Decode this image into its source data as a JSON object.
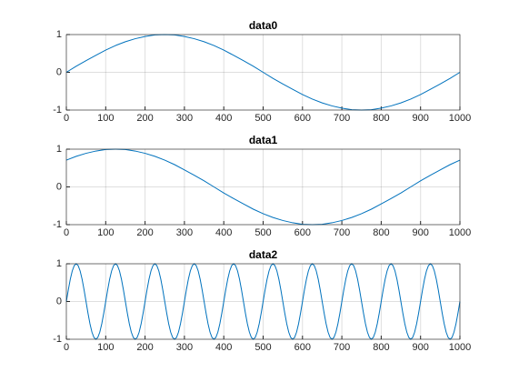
{
  "chart_data": [
    {
      "type": "line",
      "title": "data0",
      "x": [
        0,
        25,
        50,
        75,
        100,
        125,
        150,
        175,
        200,
        225,
        250,
        275,
        300,
        325,
        350,
        375,
        400,
        425,
        450,
        475,
        500,
        525,
        550,
        575,
        600,
        625,
        650,
        675,
        700,
        725,
        750,
        775,
        800,
        825,
        850,
        875,
        900,
        925,
        950,
        975,
        1000
      ],
      "values": [
        0,
        0.16,
        0.31,
        0.45,
        0.59,
        0.71,
        0.81,
        0.89,
        0.95,
        0.99,
        1,
        0.99,
        0.95,
        0.89,
        0.81,
        0.71,
        0.59,
        0.45,
        0.31,
        0.16,
        0,
        -0.16,
        -0.31,
        -0.45,
        -0.59,
        -0.71,
        -0.81,
        -0.89,
        -0.95,
        -0.99,
        -1,
        -0.99,
        -0.95,
        -0.89,
        -0.81,
        -0.71,
        -0.59,
        -0.45,
        -0.31,
        -0.16,
        0
      ],
      "color": "#0072bd",
      "xlim": [
        0,
        1000
      ],
      "ylim": [
        -1,
        1
      ],
      "xticks": [
        0,
        100,
        200,
        300,
        400,
        500,
        600,
        700,
        800,
        900,
        1000
      ],
      "yticks": [
        -1,
        0,
        1
      ],
      "grid": true
    },
    {
      "type": "line",
      "title": "data1",
      "x": [
        0,
        25,
        50,
        75,
        100,
        125,
        150,
        175,
        200,
        225,
        250,
        275,
        300,
        325,
        350,
        375,
        400,
        425,
        450,
        475,
        500,
        525,
        550,
        575,
        600,
        625,
        650,
        675,
        700,
        725,
        750,
        775,
        800,
        825,
        850,
        875,
        900,
        925,
        950,
        975,
        1000
      ],
      "values": [
        0.71,
        0.81,
        0.89,
        0.95,
        0.99,
        1,
        0.99,
        0.95,
        0.89,
        0.81,
        0.71,
        0.59,
        0.45,
        0.31,
        0.16,
        0,
        -0.16,
        -0.31,
        -0.45,
        -0.59,
        -0.71,
        -0.81,
        -0.89,
        -0.95,
        -0.99,
        -1,
        -0.99,
        -0.95,
        -0.89,
        -0.81,
        -0.71,
        -0.59,
        -0.45,
        -0.31,
        -0.16,
        0,
        0.16,
        0.31,
        0.45,
        0.59,
        0.71
      ],
      "color": "#0072bd",
      "xlim": [
        0,
        1000
      ],
      "ylim": [
        -1,
        1
      ],
      "xticks": [
        0,
        100,
        200,
        300,
        400,
        500,
        600,
        700,
        800,
        900,
        1000
      ],
      "yticks": [
        -1,
        0,
        1
      ],
      "grid": true
    },
    {
      "type": "line",
      "title": "data2",
      "x": [
        0,
        5,
        10,
        15,
        20,
        25,
        30,
        35,
        40,
        45,
        50,
        55,
        60,
        65,
        70,
        75,
        80,
        85,
        90,
        95,
        100,
        105,
        110,
        115,
        120,
        125,
        130,
        135,
        140,
        145,
        150,
        155,
        160,
        165,
        170,
        175,
        180,
        185,
        190,
        195,
        200,
        205,
        210,
        215,
        220,
        225,
        230,
        235,
        240,
        245,
        250,
        255,
        260,
        265,
        270,
        275,
        280,
        285,
        290,
        295,
        300,
        305,
        310,
        315,
        320,
        325,
        330,
        335,
        340,
        345,
        350,
        355,
        360,
        365,
        370,
        375,
        380,
        385,
        390,
        395,
        400,
        405,
        410,
        415,
        420,
        425,
        430,
        435,
        440,
        445,
        450,
        455,
        460,
        465,
        470,
        475,
        480,
        485,
        490,
        495,
        500,
        505,
        510,
        515,
        520,
        525,
        530,
        535,
        540,
        545,
        550,
        555,
        560,
        565,
        570,
        575,
        580,
        585,
        590,
        595,
        600,
        605,
        610,
        615,
        620,
        625,
        630,
        635,
        640,
        645,
        650,
        655,
        660,
        665,
        670,
        675,
        680,
        685,
        690,
        695,
        700,
        705,
        710,
        715,
        720,
        725,
        730,
        735,
        740,
        745,
        750,
        755,
        760,
        765,
        770,
        775,
        780,
        785,
        790,
        795,
        800,
        805,
        810,
        815,
        820,
        825,
        830,
        835,
        840,
        845,
        850,
        855,
        860,
        865,
        870,
        875,
        880,
        885,
        890,
        895,
        900,
        905,
        910,
        915,
        920,
        925,
        930,
        935,
        940,
        945,
        950,
        955,
        960,
        965,
        970,
        975,
        980,
        985,
        990,
        995,
        1000
      ],
      "values": [
        0,
        0.31,
        0.59,
        0.81,
        0.95,
        1,
        0.95,
        0.81,
        0.59,
        0.31,
        0,
        -0.31,
        -0.59,
        -0.81,
        -0.95,
        -1,
        -0.95,
        -0.81,
        -0.59,
        -0.31,
        0,
        0.31,
        0.59,
        0.81,
        0.95,
        1,
        0.95,
        0.81,
        0.59,
        0.31,
        0,
        -0.31,
        -0.59,
        -0.81,
        -0.95,
        -1,
        -0.95,
        -0.81,
        -0.59,
        -0.31,
        0,
        0.31,
        0.59,
        0.81,
        0.95,
        1,
        0.95,
        0.81,
        0.59,
        0.31,
        0,
        -0.31,
        -0.59,
        -0.81,
        -0.95,
        -1,
        -0.95,
        -0.81,
        -0.59,
        -0.31,
        0,
        0.31,
        0.59,
        0.81,
        0.95,
        1,
        0.95,
        0.81,
        0.59,
        0.31,
        0,
        -0.31,
        -0.59,
        -0.81,
        -0.95,
        -1,
        -0.95,
        -0.81,
        -0.59,
        -0.31,
        0,
        0.31,
        0.59,
        0.81,
        0.95,
        1,
        0.95,
        0.81,
        0.59,
        0.31,
        0,
        -0.31,
        -0.59,
        -0.81,
        -0.95,
        -1,
        -0.95,
        -0.81,
        -0.59,
        -0.31,
        0,
        0.31,
        0.59,
        0.81,
        0.95,
        1,
        0.95,
        0.81,
        0.59,
        0.31,
        0,
        -0.31,
        -0.59,
        -0.81,
        -0.95,
        -1,
        -0.95,
        -0.81,
        -0.59,
        -0.31,
        0,
        0.31,
        0.59,
        0.81,
        0.95,
        1,
        0.95,
        0.81,
        0.59,
        0.31,
        0,
        -0.31,
        -0.59,
        -0.81,
        -0.95,
        -1,
        -0.95,
        -0.81,
        -0.59,
        -0.31,
        0,
        0.31,
        0.59,
        0.81,
        0.95,
        1,
        0.95,
        0.81,
        0.59,
        0.31,
        0,
        -0.31,
        -0.59,
        -0.81,
        -0.95,
        -1,
        -0.95,
        -0.81,
        -0.59,
        -0.31,
        0,
        0.31,
        0.59,
        0.81,
        0.95,
        1,
        0.95,
        0.81,
        0.59,
        0.31,
        0,
        -0.31,
        -0.59,
        -0.81,
        -0.95,
        -1,
        -0.95,
        -0.81,
        -0.59,
        -0.31,
        0,
        0.31,
        0.59,
        0.81,
        0.95,
        1,
        0.95,
        0.81,
        0.59,
        0.31,
        0,
        -0.31,
        -0.59,
        -0.81,
        -0.95,
        -1,
        -0.95,
        -0.81,
        -0.59,
        -0.31,
        0
      ],
      "color": "#0072bd",
      "xlim": [
        0,
        1000
      ],
      "ylim": [
        -1,
        1
      ],
      "xticks": [
        0,
        100,
        200,
        300,
        400,
        500,
        600,
        700,
        800,
        900,
        1000
      ],
      "yticks": [
        -1,
        0,
        1
      ],
      "grid": true
    }
  ]
}
